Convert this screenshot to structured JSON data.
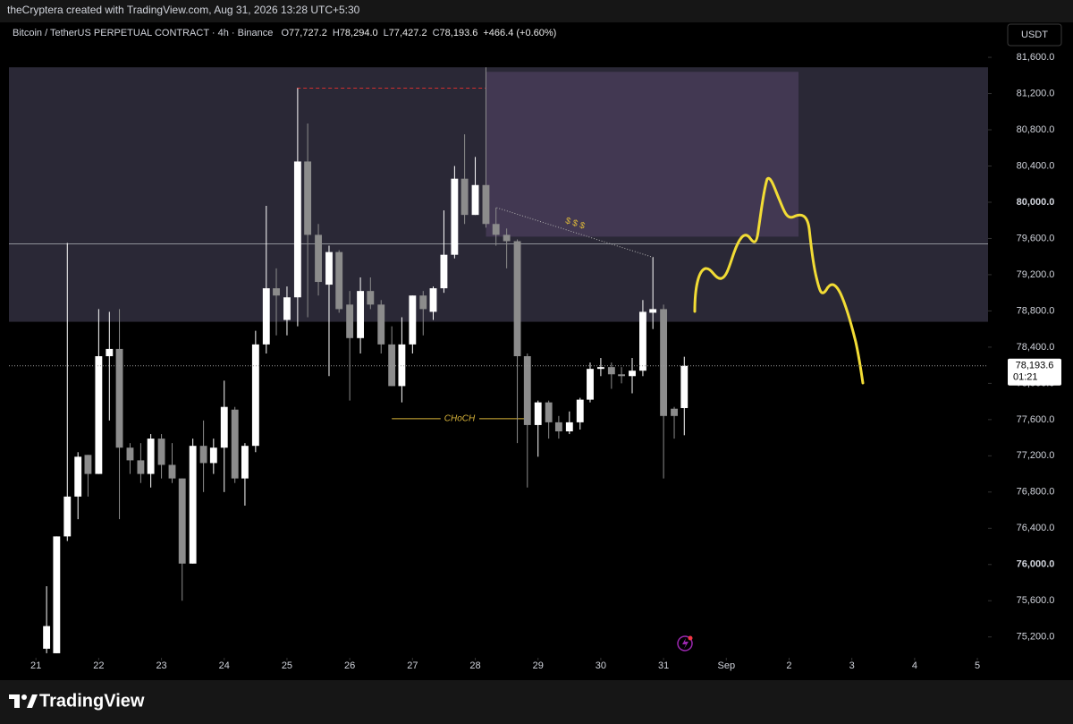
{
  "header": {
    "credit": "theCryptera created with TradingView.com, Aug 31, 2026 13:28 UTC+5:30"
  },
  "chart_data": {
    "type": "candlestick",
    "symbol": "Bitcoin / TetherUS PERPETUAL CONTRACT · 4h · Binance",
    "ohlc_legend": [
      {
        "key": "O",
        "value": "77,727.2"
      },
      {
        "key": "H",
        "value": "78,294.0"
      },
      {
        "key": "L",
        "value": "77,427.2"
      },
      {
        "key": "C",
        "value": "78,193.6"
      }
    ],
    "change": "+466.4 (+0.60%)",
    "currency": "USDT",
    "x": [
      0.17,
      0.33,
      0.5,
      0.67,
      0.83,
      1,
      1.17,
      1.33,
      1.5,
      1.67,
      1.83,
      2,
      2.17,
      2.33,
      2.5,
      2.67,
      2.83,
      3,
      3.17,
      3.33,
      3.5,
      3.67,
      3.83,
      4,
      4.17,
      4.33,
      4.5,
      4.67,
      4.83,
      5,
      5.17,
      5.33,
      5.5,
      5.67,
      5.83,
      6,
      6.17,
      6.33,
      6.5,
      6.67,
      6.83,
      7,
      7.17,
      7.33,
      7.5,
      7.67,
      7.83,
      8,
      8.17,
      8.33,
      8.5,
      8.67,
      8.83,
      9,
      9.17,
      9.33,
      9.5,
      9.67,
      9.83,
      10,
      10.17,
      10.33
    ],
    "open": [
      75070,
      75020,
      76310,
      76750,
      77210,
      77000,
      78300,
      78380,
      77290,
      77150,
      77000,
      77390,
      77100,
      76950,
      76010,
      77310,
      77120,
      77290,
      77710,
      76950,
      77310,
      78430,
      79050,
      78700,
      78950,
      80450,
      79640,
      79090,
      79450,
      78870,
      78500,
      79020,
      78870,
      78430,
      77970,
      78430,
      78970,
      78790,
      79050,
      79420,
      80260,
      79860,
      80190,
      79760,
      79640,
      79570,
      78300,
      77540,
      77790,
      77570,
      77470,
      77570,
      77820,
      78160,
      78180,
      78100,
      78080,
      78140,
      78780,
      78820,
      77720,
      77727.2
    ],
    "high": [
      75760,
      76310,
      79550,
      77240,
      77210,
      78820,
      78790,
      78820,
      77340,
      77340,
      77440,
      77440,
      77340,
      76950,
      77390,
      77590,
      77390,
      78030,
      77740,
      77340,
      78580,
      79960,
      79270,
      79070,
      81260,
      80870,
      79760,
      79520,
      79470,
      79020,
      79170,
      79170,
      78920,
      78630,
      78730,
      78970,
      79020,
      79070,
      79910,
      80400,
      80750,
      80500,
      81490,
      79940,
      79710,
      79590,
      78330,
      77810,
      77810,
      77640,
      77690,
      77840,
      78230,
      78280,
      78230,
      78180,
      78280,
      78920,
      79390,
      78870,
      77740,
      78294
    ],
    "low": [
      75020,
      75020,
      76260,
      76500,
      76750,
      77000,
      77590,
      76500,
      77000,
      76900,
      76850,
      76950,
      76900,
      75600,
      76010,
      76800,
      77000,
      76800,
      76900,
      76650,
      77240,
      78330,
      78530,
      78530,
      78630,
      78730,
      78970,
      78080,
      78780,
      77810,
      78330,
      78820,
      78330,
      77970,
      77790,
      78330,
      78530,
      78700,
      79000,
      79380,
      79760,
      79860,
      79720,
      79520,
      79270,
      77340,
      76850,
      77190,
      77390,
      77390,
      77440,
      77490,
      77790,
      78080,
      77940,
      78000,
      77890,
      78080,
      78600,
      76950,
      77390,
      77427.2
    ],
    "close": [
      75320,
      76310,
      76750,
      77190,
      77000,
      78300,
      78380,
      77290,
      77150,
      77000,
      77390,
      77100,
      76950,
      76010,
      77310,
      77120,
      77290,
      77740,
      76950,
      77310,
      78430,
      79050,
      78970,
      78950,
      80450,
      79640,
      79120,
      79450,
      78820,
      78500,
      79020,
      78870,
      78430,
      77970,
      78430,
      78970,
      78820,
      79050,
      79420,
      80260,
      79860,
      80190,
      79760,
      79640,
      79570,
      78300,
      77540,
      77790,
      77570,
      77470,
      77570,
      77820,
      78160,
      78180,
      78100,
      78080,
      78140,
      78790,
      78820,
      77640,
      77640,
      78193.6
    ],
    "up_color": "#ffffff",
    "down_color": "#8c8c8c",
    "xlim": [
      -0.43,
      15.17
    ],
    "xticks": [
      {
        "value": 0,
        "label": "21"
      },
      {
        "value": 1,
        "label": "22"
      },
      {
        "value": 2,
        "label": "23"
      },
      {
        "value": 3,
        "label": "24"
      },
      {
        "value": 4,
        "label": "25"
      },
      {
        "value": 5,
        "label": "26"
      },
      {
        "value": 6,
        "label": "27"
      },
      {
        "value": 7,
        "label": "28"
      },
      {
        "value": 8,
        "label": "29"
      },
      {
        "value": 9,
        "label": "30"
      },
      {
        "value": 10,
        "label": "31"
      },
      {
        "value": 11,
        "label": "Sep"
      },
      {
        "value": 12,
        "label": "2"
      },
      {
        "value": 13,
        "label": "3"
      },
      {
        "value": 14,
        "label": "4"
      },
      {
        "value": 15,
        "label": "5"
      }
    ],
    "ylim": [
      74970,
      81660
    ],
    "yticks": [
      {
        "value": 75200,
        "label": "75,200.0"
      },
      {
        "value": 75600,
        "label": "75,600.0"
      },
      {
        "value": 76000,
        "label": "76,000.0"
      },
      {
        "value": 76400,
        "label": "76,400.0"
      },
      {
        "value": 76800,
        "label": "76,800.0"
      },
      {
        "value": 77200,
        "label": "77,200.0"
      },
      {
        "value": 77600,
        "label": "77,600.0"
      },
      {
        "value": 78000,
        "label": "78,000.0"
      },
      {
        "value": 78400,
        "label": "78,400.0"
      },
      {
        "value": 78800,
        "label": "78,800.0"
      },
      {
        "value": 79200,
        "label": "79,200.0"
      },
      {
        "value": 79600,
        "label": "79,600.0"
      },
      {
        "value": 80000,
        "label": "80,000.0"
      },
      {
        "value": 80400,
        "label": "80,400.0"
      },
      {
        "value": 80800,
        "label": "80,800.0"
      },
      {
        "value": 81200,
        "label": "81,200.0"
      },
      {
        "value": 81600,
        "label": "81,600.0"
      }
    ],
    "last_price": {
      "label": "78,193.6",
      "countdown": "01:21"
    },
    "zones": [
      {
        "x": [
          -0.43,
          15.17
        ],
        "y": [
          78680,
          81490
        ],
        "color": "#2a2836"
      },
      {
        "x": [
          7.17,
          12.15
        ],
        "y": [
          79620,
          81440
        ],
        "color": "#423852"
      }
    ],
    "lines": [
      {
        "x": [
          -0.43,
          15.17
        ],
        "y": [
          79540,
          79540
        ],
        "color": "#8f9199"
      },
      {
        "x": [
          4.16,
          7.17
        ],
        "y": [
          81260,
          81260
        ],
        "color": "#d32f2f",
        "dash": "4 3"
      },
      {
        "x": [
          5.67,
          7.83
        ],
        "y": [
          77610,
          77610
        ],
        "color": "#d9b53a",
        "label": "CHoCH"
      },
      {
        "x": [
          7.34,
          9.84
        ],
        "y": [
          79940,
          79390
        ],
        "color": "#b0b0b0",
        "dash": "1 2",
        "label": "$ $ $"
      }
    ]
  },
  "footer": {
    "logo": "TradingView"
  }
}
